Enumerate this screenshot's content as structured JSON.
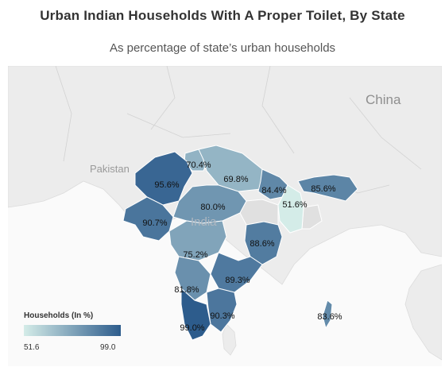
{
  "title": "Urban Indian Households With A Proper Toilet, By State",
  "subtitle": "As percentage of state’s urban households",
  "places": {
    "china": "China",
    "pakistan": "Pakistan",
    "india": "India"
  },
  "legend": {
    "title": "Households (In %)",
    "min_label": "51.6",
    "max_label": "99.0",
    "min": 51.6,
    "max": 99.0,
    "color_low": "#d4ece8",
    "color_high": "#2d5c8c"
  },
  "colors": {
    "water": "#fafafa",
    "land": "#ececec",
    "border": "#ffffff",
    "no_data": "#e0e0e0"
  },
  "map_data": {
    "type": "choropleth",
    "values": [
      {
        "label": "70.4%",
        "value": 70.4
      },
      {
        "label": "95.6%",
        "value": 95.6
      },
      {
        "label": "69.8%",
        "value": 69.8
      },
      {
        "label": "84.4%",
        "value": 84.4
      },
      {
        "label": "85.6%",
        "value": 85.6
      },
      {
        "label": "51.6%",
        "value": 51.6
      },
      {
        "label": "90.7%",
        "value": 90.7
      },
      {
        "label": "80.0%",
        "value": 80.0
      },
      {
        "label": "88.6%",
        "value": 88.6
      },
      {
        "label": "75.2%",
        "value": 75.2
      },
      {
        "label": "89.3%",
        "value": 89.3
      },
      {
        "label": "81.8%",
        "value": 81.8
      },
      {
        "label": "90.3%",
        "value": 90.3
      },
      {
        "label": "99.0%",
        "value": 99.0
      },
      {
        "label": "83.6%",
        "value": 83.6
      }
    ]
  }
}
